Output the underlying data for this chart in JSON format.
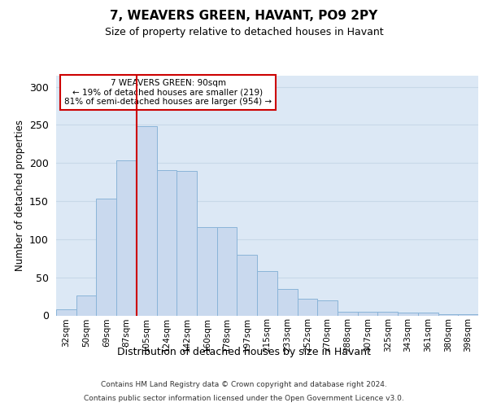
{
  "title": "7, WEAVERS GREEN, HAVANT, PO9 2PY",
  "subtitle": "Size of property relative to detached houses in Havant",
  "xlabel": "Distribution of detached houses by size in Havant",
  "ylabel": "Number of detached properties",
  "footer_line1": "Contains HM Land Registry data © Crown copyright and database right 2024.",
  "footer_line2": "Contains public sector information licensed under the Open Government Licence v3.0.",
  "annotation_line1": "7 WEAVERS GREEN: 90sqm",
  "annotation_line2": "← 19% of detached houses are smaller (219)",
  "annotation_line3": "81% of semi-detached houses are larger (954) →",
  "bar_color": "#c9d9ee",
  "bar_edge_color": "#8ab4d8",
  "vline_color": "#cc0000",
  "annotation_box_facecolor": "#ffffff",
  "annotation_box_edgecolor": "#cc0000",
  "grid_color": "#c8d8e8",
  "plot_bg_color": "#dce8f5",
  "categories": [
    "32sqm",
    "50sqm",
    "69sqm",
    "87sqm",
    "105sqm",
    "124sqm",
    "142sqm",
    "160sqm",
    "178sqm",
    "197sqm",
    "215sqm",
    "233sqm",
    "252sqm",
    "270sqm",
    "288sqm",
    "307sqm",
    "325sqm",
    "343sqm",
    "361sqm",
    "380sqm",
    "398sqm"
  ],
  "bar_heights": [
    8,
    26,
    153,
    203,
    248,
    191,
    190,
    116,
    116,
    80,
    58,
    35,
    22,
    20,
    5,
    5,
    5,
    4,
    4,
    2,
    2
  ],
  "vline_x": 3.5,
  "ylim": [
    0,
    315
  ],
  "yticks": [
    0,
    50,
    100,
    150,
    200,
    250,
    300
  ]
}
